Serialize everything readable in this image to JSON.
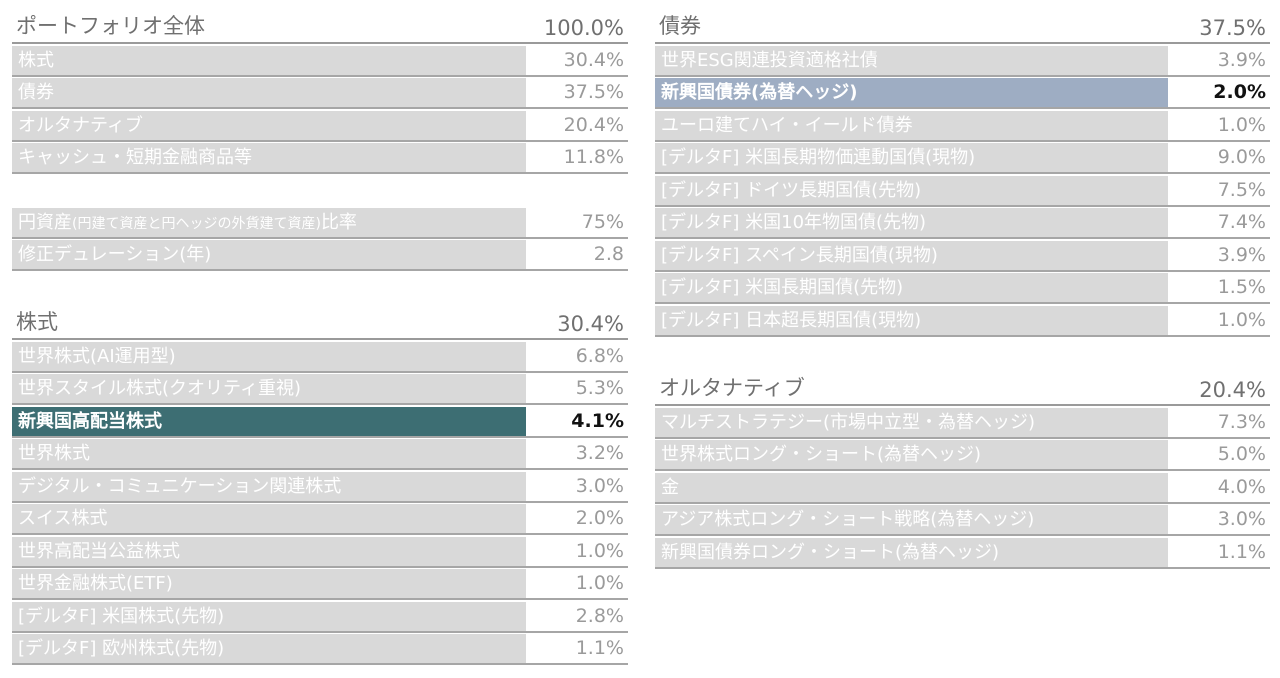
{
  "portfolio": {
    "title": "ポートフォリオ全体",
    "total": "100.0%",
    "rows": [
      {
        "label": "株式",
        "value": "30.4%"
      },
      {
        "label": "債券",
        "value": "37.5%"
      },
      {
        "label": "オルタナティブ",
        "value": "20.4%"
      },
      {
        "label": "キャッシュ・短期金融商品等",
        "value": "11.8%"
      }
    ]
  },
  "metrics": {
    "yen_ratio": {
      "label_main": "円資産",
      "label_note": "(円建て資産と円ヘッジの外貨建て資産)",
      "label_tail": "比率",
      "value": "75%"
    },
    "duration": {
      "label": "修正デュレーション(年)",
      "value": "2.8"
    }
  },
  "equity": {
    "title": "株式",
    "total": "30.4%",
    "rows": [
      {
        "label": "世界株式(AI運用型)",
        "value": "6.8%"
      },
      {
        "label": "世界スタイル株式(クオリティ重視)",
        "value": "5.3%"
      },
      {
        "label": "新興国高配当株式",
        "value": "4.1%"
      },
      {
        "label": "世界株式",
        "value": "3.2%"
      },
      {
        "label": "デジタル・コミュニケーション関連株式",
        "value": "3.0%"
      },
      {
        "label": "スイス株式",
        "value": "2.0%"
      },
      {
        "label": "世界高配当公益株式",
        "value": "1.0%"
      },
      {
        "label": "世界金融株式(ETF)",
        "value": "1.0%"
      },
      {
        "label": "[デルタF] 米国株式(先物)",
        "value": "2.8%"
      },
      {
        "label": "[デルタF] 欧州株式(先物)",
        "value": "1.1%"
      }
    ]
  },
  "bonds": {
    "title": "債券",
    "total": "37.5%",
    "rows": [
      {
        "label": "世界ESG関連投資適格社債",
        "value": "3.9%"
      },
      {
        "label": "新興国債券(為替ヘッジ)",
        "value": "2.0%"
      },
      {
        "label": "ユーロ建てハイ・イールド債券",
        "value": "1.0%"
      },
      {
        "label": "[デルタF] 米国長期物価連動国債(現物)",
        "value": "9.0%"
      },
      {
        "label": "[デルタF] ドイツ長期国債(先物)",
        "value": "7.5%"
      },
      {
        "label": "[デルタF] 米国10年物国債(先物)",
        "value": "7.4%"
      },
      {
        "label": "[デルタF] スペイン長期国債(現物)",
        "value": "3.9%"
      },
      {
        "label": "[デルタF] 米国長期国債(先物)",
        "value": "1.5%"
      },
      {
        "label": "[デルタF] 日本超長期国債(現物)",
        "value": "1.0%"
      }
    ]
  },
  "alternatives": {
    "title": "オルタナティブ",
    "total": "20.4%",
    "rows": [
      {
        "label": "マルチストラテジー(市場中立型・為替ヘッジ)",
        "value": "7.3%"
      },
      {
        "label": "世界株式ロング・ショート(為替ヘッジ)",
        "value": "5.0%"
      },
      {
        "label": "金",
        "value": "4.0%"
      },
      {
        "label": "アジア株式ロング・ショート戦略(為替ヘッジ)",
        "value": "3.0%"
      },
      {
        "label": "新興国債券ロング・ショート(為替ヘッジ)",
        "value": "1.1%"
      }
    ]
  },
  "colors": {
    "highlight_equity": "#3d6e73",
    "highlight_bond": "#9eadc3",
    "row_bg": "#d9d9d9"
  }
}
